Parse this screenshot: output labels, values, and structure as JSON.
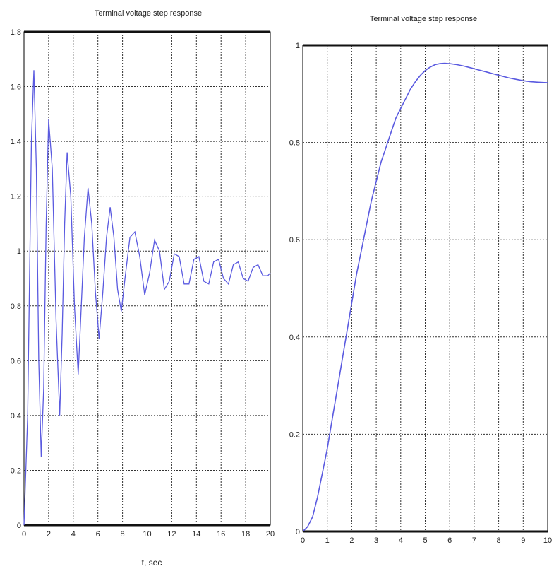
{
  "chart_data": [
    {
      "type": "line",
      "title": "Terminal voltage step response",
      "xlabel": "t, sec",
      "ylabel": "",
      "xlim": [
        0,
        20
      ],
      "ylim": [
        0,
        1.8
      ],
      "xticks": [
        "0",
        "2",
        "4",
        "6",
        "8",
        "10",
        "12",
        "14",
        "16",
        "18",
        "20"
      ],
      "yticks": [
        "0",
        "0.2",
        "0.4",
        "0.6",
        "0.8",
        "1",
        "1.2",
        "1.4",
        "1.6",
        "1.8"
      ],
      "grid": true,
      "line_color": "#5a5ae0",
      "series": [
        {
          "x": [
            0,
            0.3,
            0.6,
            0.8,
            1.0,
            1.2,
            1.4,
            1.6,
            1.8,
            2.0,
            2.3,
            2.6,
            2.9,
            3.1,
            3.3,
            3.5,
            3.8,
            4.1,
            4.4,
            4.6,
            4.9,
            5.2,
            5.5,
            5.8,
            6.1,
            6.4,
            6.7,
            7.0,
            7.3,
            7.6,
            7.9,
            8.2,
            8.6,
            9.0,
            9.4,
            9.8,
            10.2,
            10.6,
            11.0,
            11.4,
            11.8,
            12.2,
            12.6,
            13.0,
            13.4,
            13.8,
            14.2,
            14.6,
            15.0,
            15.4,
            15.8,
            16.2,
            16.6,
            17.0,
            17.4,
            17.8,
            18.2,
            18.6,
            19.0,
            19.4,
            19.8,
            20.0
          ],
          "y": [
            0,
            0.4,
            1.4,
            1.66,
            1.3,
            0.6,
            0.25,
            0.5,
            1.1,
            1.48,
            1.3,
            0.75,
            0.4,
            0.7,
            1.1,
            1.36,
            1.2,
            0.8,
            0.55,
            0.75,
            1.05,
            1.23,
            1.1,
            0.85,
            0.68,
            0.85,
            1.05,
            1.16,
            1.05,
            0.86,
            0.78,
            0.9,
            1.05,
            1.07,
            0.98,
            0.84,
            0.92,
            1.04,
            1.0,
            0.86,
            0.89,
            0.99,
            0.98,
            0.88,
            0.88,
            0.97,
            0.98,
            0.89,
            0.88,
            0.96,
            0.97,
            0.9,
            0.88,
            0.95,
            0.96,
            0.9,
            0.89,
            0.94,
            0.95,
            0.91,
            0.91,
            0.92
          ]
        }
      ]
    },
    {
      "type": "line",
      "title": "Terminal voltage step response",
      "xlabel": "",
      "ylabel": "",
      "xlim": [
        0,
        10
      ],
      "ylim": [
        0,
        1
      ],
      "xticks": [
        "0",
        "1",
        "2",
        "3",
        "4",
        "5",
        "6",
        "7",
        "8",
        "9",
        "10"
      ],
      "yticks": [
        "0",
        "0.2",
        "0.4",
        "0.6",
        "0.8",
        "1"
      ],
      "grid": true,
      "line_color": "#5a5ae0",
      "series": [
        {
          "x": [
            0,
            0.2,
            0.4,
            0.6,
            0.8,
            1.0,
            1.2,
            1.4,
            1.6,
            1.8,
            2.0,
            2.2,
            2.4,
            2.6,
            2.8,
            3.0,
            3.2,
            3.4,
            3.6,
            3.8,
            4.0,
            4.2,
            4.4,
            4.6,
            4.8,
            5.0,
            5.2,
            5.4,
            5.6,
            5.8,
            6.0,
            6.3,
            6.6,
            6.9,
            7.2,
            7.5,
            7.8,
            8.1,
            8.4,
            8.7,
            9.0,
            9.3,
            9.6,
            10.0
          ],
          "y": [
            0,
            0.01,
            0.03,
            0.07,
            0.12,
            0.17,
            0.23,
            0.29,
            0.35,
            0.41,
            0.47,
            0.53,
            0.58,
            0.63,
            0.68,
            0.72,
            0.76,
            0.79,
            0.82,
            0.85,
            0.87,
            0.89,
            0.91,
            0.925,
            0.938,
            0.948,
            0.955,
            0.96,
            0.962,
            0.963,
            0.962,
            0.96,
            0.957,
            0.953,
            0.949,
            0.945,
            0.941,
            0.937,
            0.933,
            0.93,
            0.927,
            0.925,
            0.924,
            0.923
          ]
        }
      ]
    }
  ]
}
